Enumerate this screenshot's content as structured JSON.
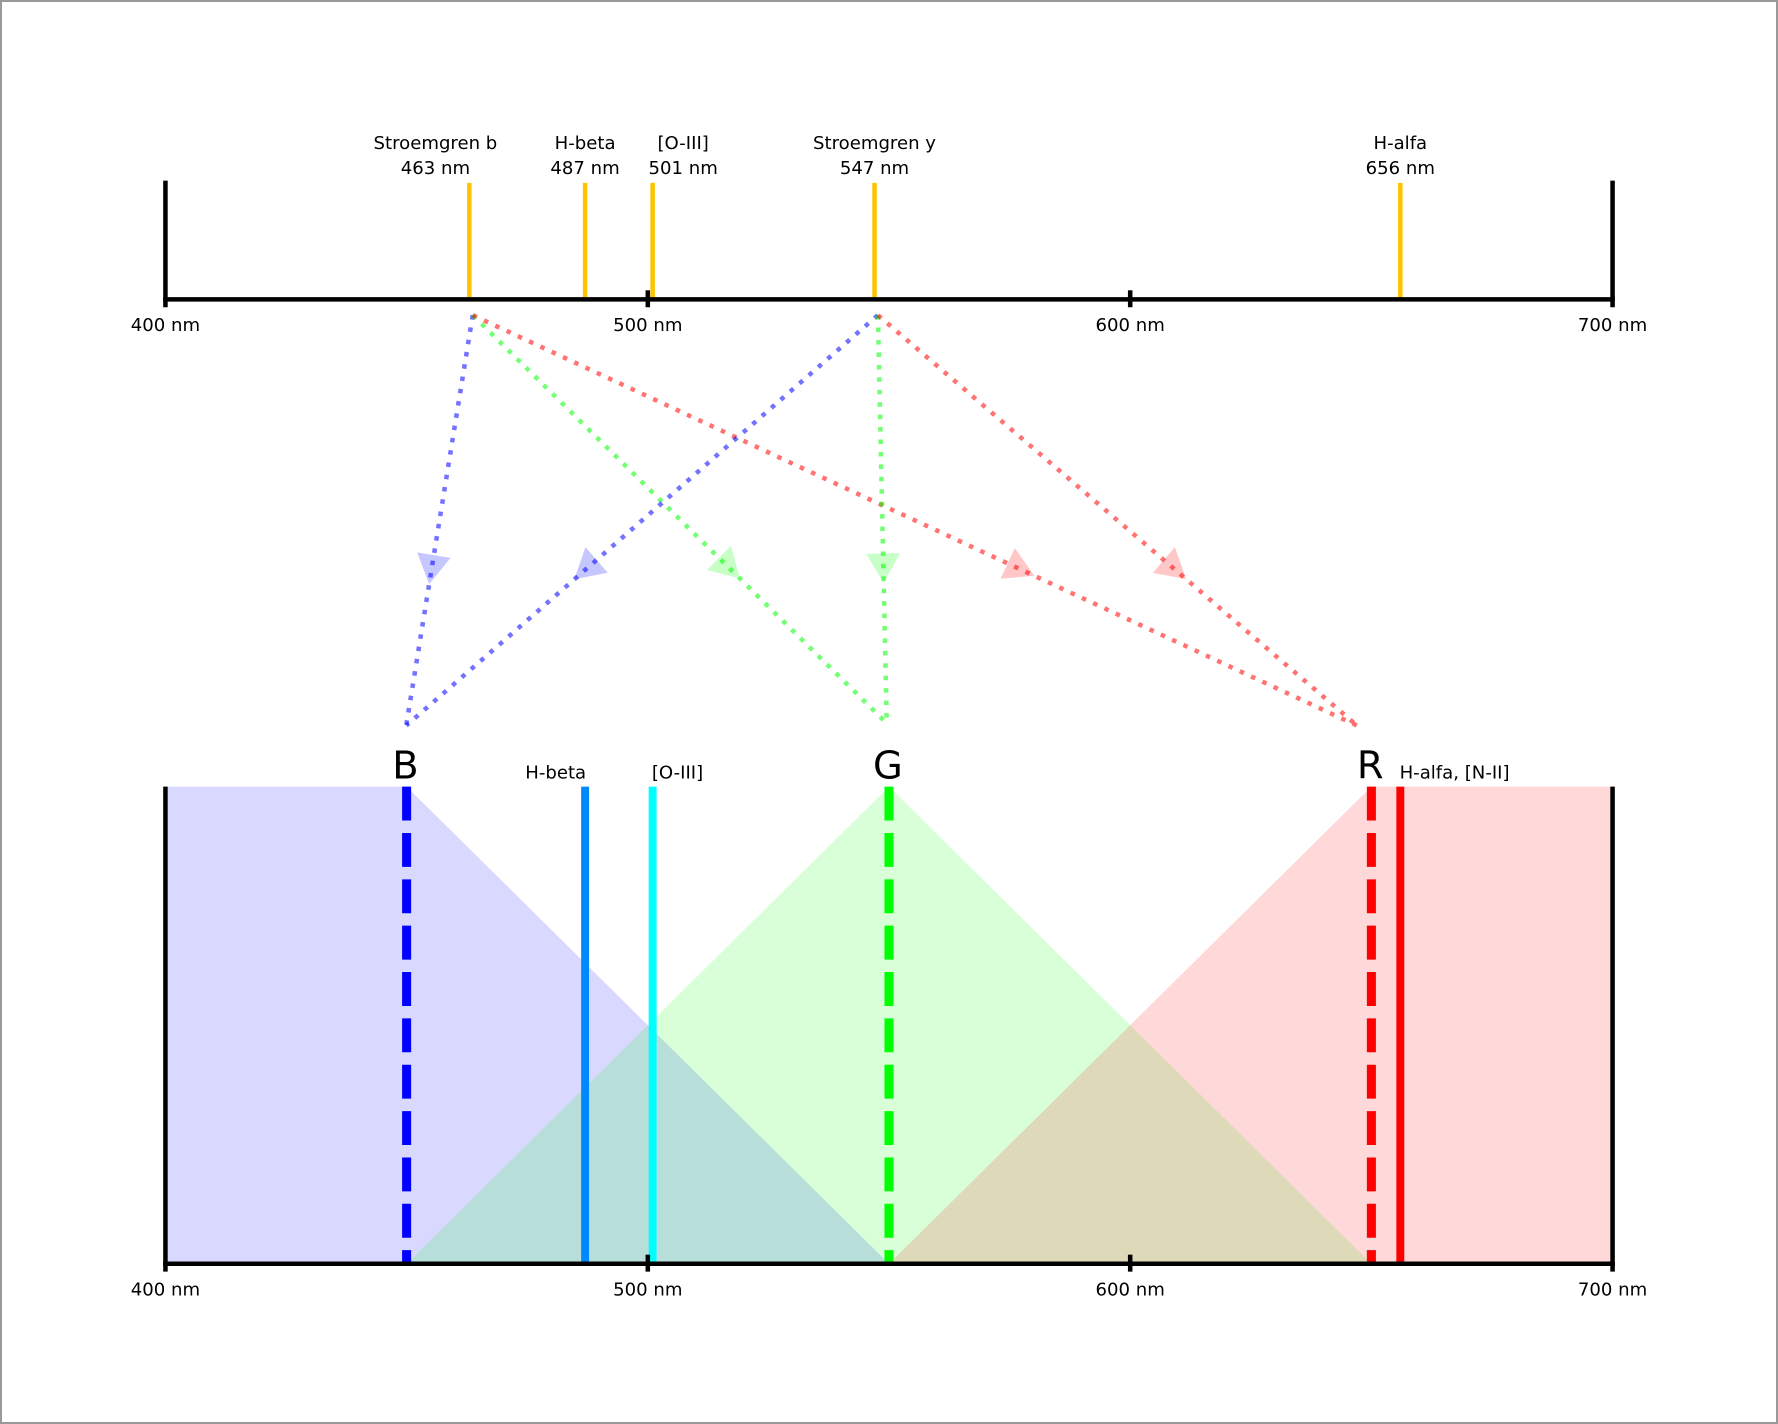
{
  "axis": {
    "min": 400,
    "max": 700,
    "ticks": [
      400,
      500,
      600,
      700
    ],
    "tick_labels": [
      "400 nm",
      "500 nm",
      "600 nm",
      "700 nm"
    ]
  },
  "filters": [
    {
      "name": "Stroemgren b",
      "wavelength": 463,
      "label": "463 nm"
    },
    {
      "name": "H-beta",
      "wavelength": 487,
      "label": "487 nm"
    },
    {
      "name": "[O-III]",
      "wavelength": 501,
      "label": "501 nm"
    },
    {
      "name": "Stroemgren y",
      "wavelength": 547,
      "label": "547 nm"
    },
    {
      "name": "H-alfa",
      "wavelength": 656,
      "label": "656 nm"
    }
  ],
  "filter_color": "#ffc400",
  "channels": [
    {
      "label": "B",
      "wavelength": 450,
      "color": "#0000ff",
      "fill": "#d9d9fb"
    },
    {
      "label": "G",
      "wavelength": 550,
      "color": "#00ff00",
      "fill": "#d9fcd9"
    },
    {
      "label": "R",
      "wavelength": 650,
      "color": "#ff0000",
      "fill": "#fcd9d9"
    }
  ],
  "emission_lines": [
    {
      "label": "H-beta",
      "wavelength": 487,
      "color": "#0088ff"
    },
    {
      "label": "[O-III]",
      "wavelength": 501,
      "color": "#00ffff"
    },
    {
      "label": "H-alfa, [N-II]",
      "wavelength": 656,
      "color": "#ff0000"
    }
  ],
  "mappings": [
    {
      "from": "Stroemgren b",
      "to": "B"
    },
    {
      "from": "Stroemgren b",
      "to": "G"
    },
    {
      "from": "Stroemgren b",
      "to": "R"
    },
    {
      "from": "Stroemgren y",
      "to": "B"
    },
    {
      "from": "Stroemgren y",
      "to": "G"
    },
    {
      "from": "Stroemgren y",
      "to": "R"
    }
  ]
}
